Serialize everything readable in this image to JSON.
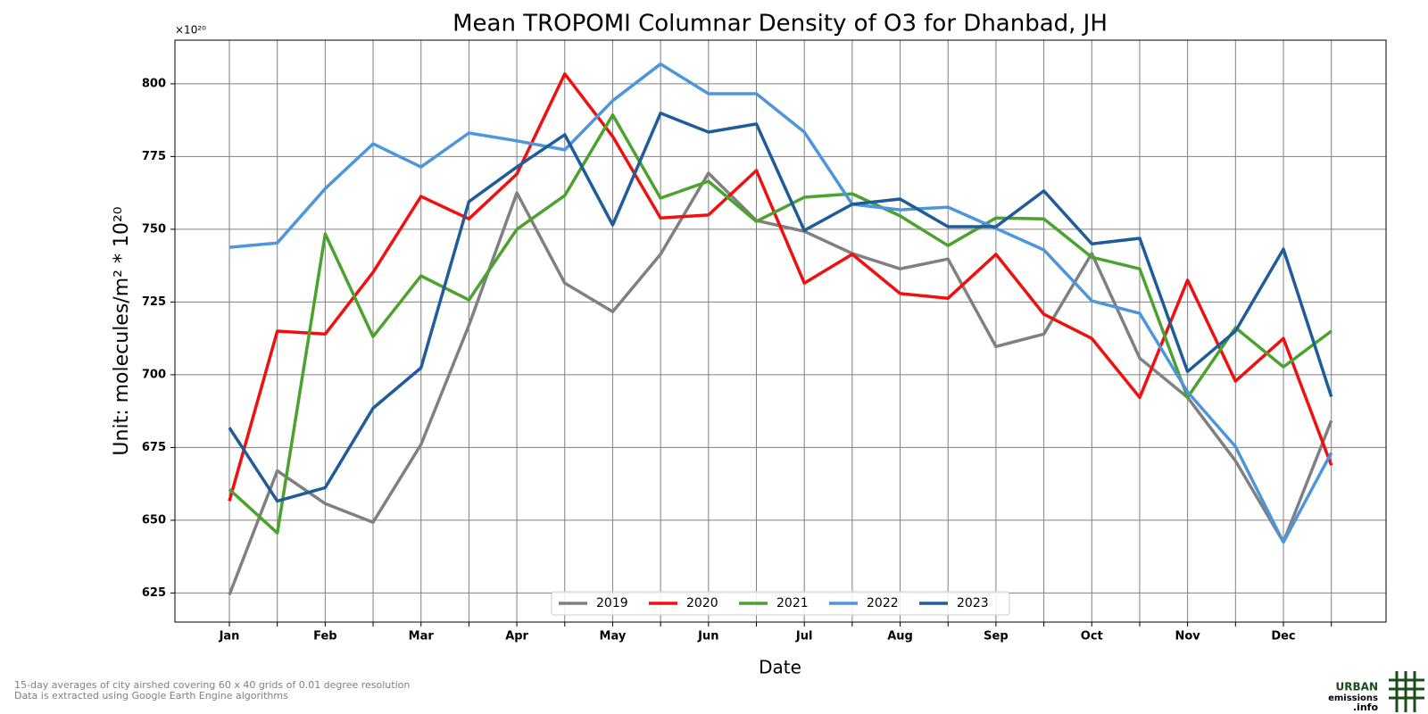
{
  "chart_data": {
    "type": "line",
    "title": "Mean TROPOMI Columnar Density of O3 for Dhanbad, JH",
    "xlabel": "Date",
    "ylabel": "Unit: molecules/m² * 10²⁰",
    "offset_text": "×10²⁰",
    "categories": [
      "Jan",
      null,
      "Feb",
      null,
      "Mar",
      null,
      "Apr",
      null,
      "May",
      null,
      "Jun",
      null,
      "Jul",
      null,
      "Aug",
      null,
      "Sep",
      null,
      "Oct",
      null,
      "Nov",
      null,
      "Dec",
      null
    ],
    "ylim": [
      615,
      815
    ],
    "yticks": [
      625,
      650,
      675,
      700,
      725,
      750,
      775,
      800
    ],
    "grid": true,
    "legend": "lower center",
    "series": [
      {
        "name": "2019",
        "color": "#808080",
        "values": [
          624.4,
          667,
          655.7,
          649.3,
          676,
          717,
          762.5,
          731.5,
          721.7,
          741.4,
          769.3,
          753,
          749.3,
          741.7,
          736.4,
          739.8,
          709.7,
          714,
          741.7,
          705.7,
          692.2,
          670.4,
          642.5,
          684.2
        ]
      },
      {
        "name": "2020",
        "color": "#f01010",
        "values": [
          656.6,
          715,
          714,
          735.2,
          761.3,
          753.6,
          769,
          803.4,
          781.9,
          753.9,
          754.9,
          770.2,
          731.5,
          741.4,
          727.9,
          726.3,
          741.4,
          720.8,
          712.5,
          692.2,
          732.5,
          697.8,
          712.5,
          668.9
        ]
      },
      {
        "name": "2021",
        "color": "#4ca22e",
        "values": [
          660.6,
          645.6,
          748.4,
          713.1,
          734,
          725.7,
          750,
          761.6,
          789.3,
          760.7,
          766.5,
          752.7,
          761,
          762.2,
          754.6,
          744.4,
          753.9,
          753.6,
          740.4,
          736.4,
          692.2,
          716.2,
          702.7,
          715
        ]
      },
      {
        "name": "2022",
        "color": "#4d96dc",
        "values": [
          743.8,
          745.3,
          764,
          779.4,
          771.4,
          783.1,
          780.4,
          777.3,
          794.2,
          806.8,
          796.6,
          796.6,
          783.4,
          758.6,
          756.7,
          757.6,
          750.3,
          742.9,
          725.4,
          721.1,
          694.1,
          675.3,
          642.5,
          673.2
        ]
      },
      {
        "name": "2023",
        "color": "#1f5c99",
        "values": [
          681.8,
          656.6,
          661.2,
          688.5,
          702.4,
          759.5,
          771.4,
          782.5,
          751.5,
          789.9,
          783.4,
          786.2,
          749.6,
          758.6,
          760.4,
          750.9,
          750.9,
          763.2,
          745,
          746.9,
          701.1,
          715,
          743.2,
          692.5
        ]
      }
    ]
  },
  "footnotes": [
    "15-day averages of city airshed covering 60 x 40 grids of 0.01 degree resolution",
    "Data is extracted using Google Earth Engine algorithms"
  ],
  "logo": [
    "URBAN",
    "emissions",
    ".info"
  ]
}
